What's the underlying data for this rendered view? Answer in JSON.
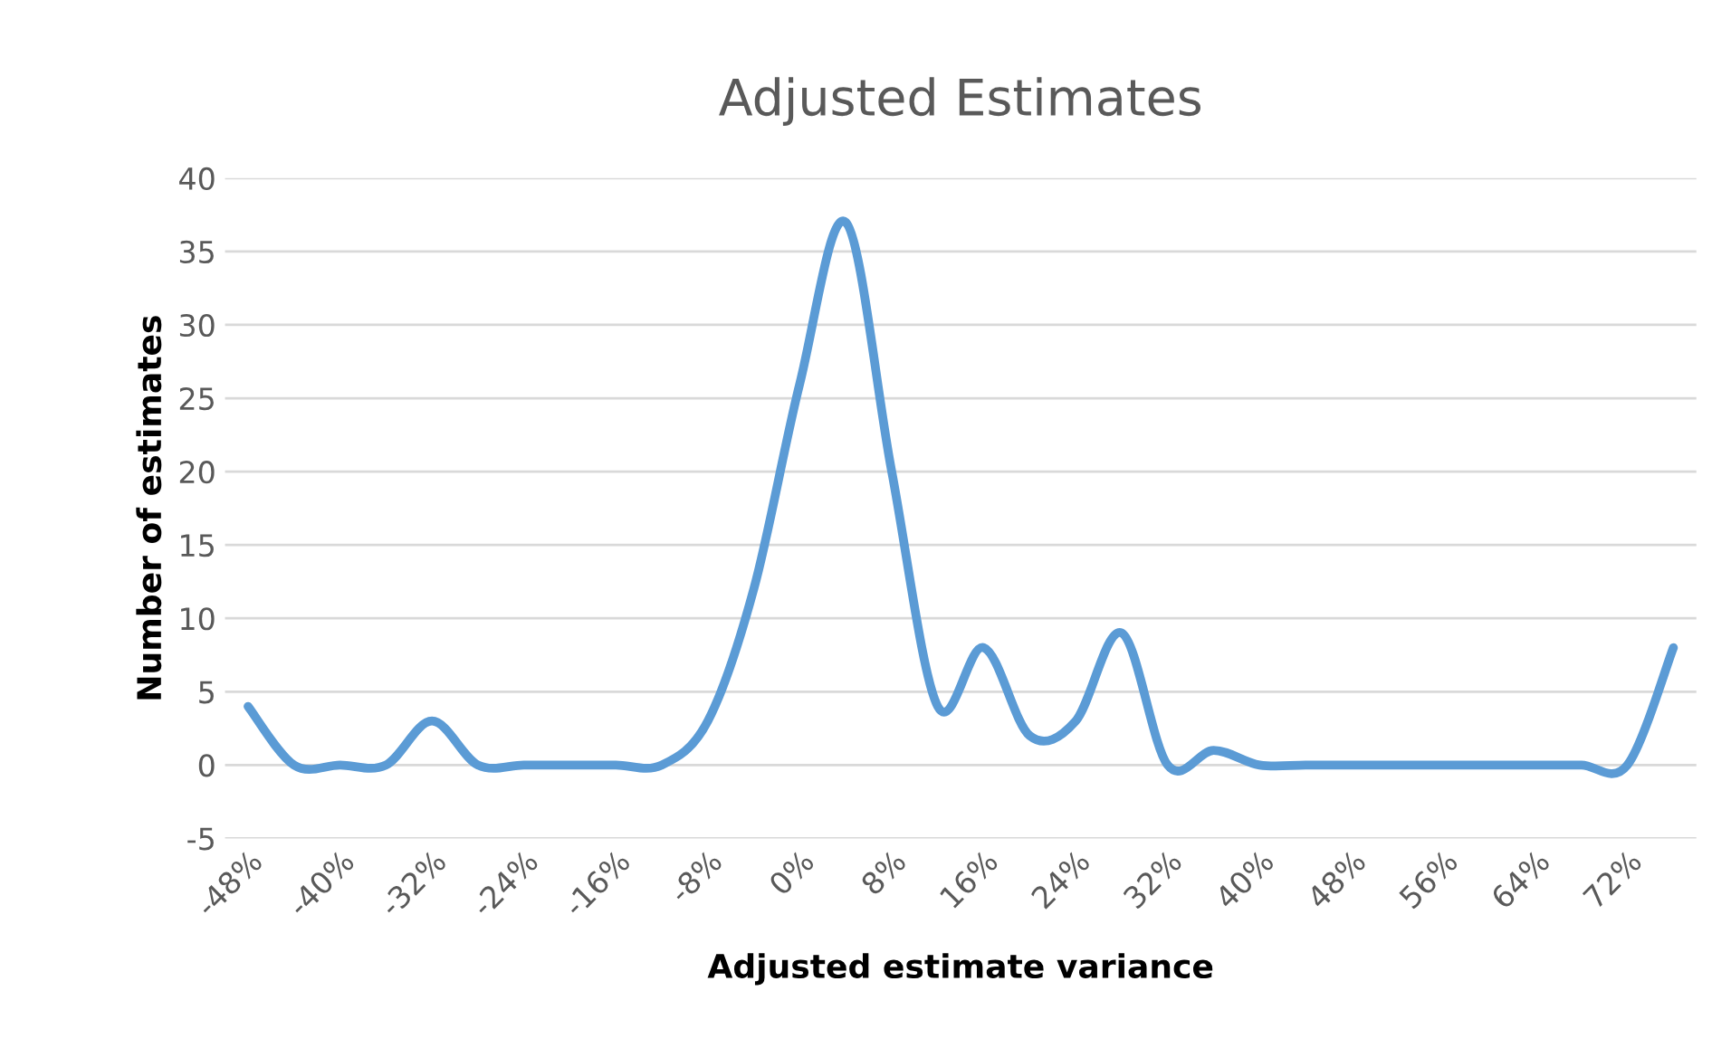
{
  "chart_data": {
    "type": "line",
    "title": "Adjusted Estimates",
    "xlabel": "Adjusted estimate variance",
    "ylabel": "Number of estimates",
    "categories": [
      "-48%",
      null,
      "-40%",
      null,
      "-32%",
      null,
      "-24%",
      null,
      "-16%",
      null,
      "-8%",
      null,
      "0%",
      null,
      "8%",
      null,
      "16%",
      null,
      "24%",
      null,
      "32%",
      null,
      "40%",
      null,
      "48%",
      null,
      "56%",
      null,
      "64%",
      null,
      "72%",
      null
    ],
    "series": [
      {
        "color": "#5b9bd5",
        "values": [
          4,
          0,
          0,
          0,
          3,
          0,
          0,
          0,
          0,
          0,
          3,
          12,
          26,
          37,
          20,
          4,
          8,
          2,
          3,
          9,
          0,
          1,
          0,
          0,
          0,
          0,
          0,
          0,
          0,
          0,
          0,
          8
        ]
      }
    ],
    "ylim": [
      -5,
      40
    ],
    "yticks": [
      -5,
      0,
      5,
      10,
      15,
      20,
      25,
      30,
      35,
      40
    ],
    "grid": "y",
    "legend": false,
    "marker": "none",
    "line_style": "solid"
  }
}
